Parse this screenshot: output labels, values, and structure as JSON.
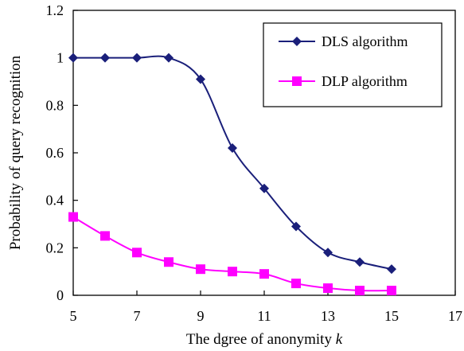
{
  "chart_data": {
    "type": "line",
    "title": "",
    "xlabel_prefix": "The dgree of anonymity ",
    "xlabel_var": "k",
    "ylabel": "Probability of query  recognition",
    "xlim": [
      5,
      17
    ],
    "ylim": [
      0,
      1.2
    ],
    "xticks": [
      "5",
      "7",
      "9",
      "11",
      "13",
      "15",
      "17"
    ],
    "yticks": [
      "0",
      "0.2",
      "0.4",
      "0.6",
      "0.8",
      "1",
      "1.2"
    ],
    "grid": false,
    "legend_position": "top-right",
    "x": [
      5,
      6,
      7,
      8,
      9,
      10,
      11,
      12,
      13,
      14,
      15
    ],
    "series": [
      {
        "name": "DLS algorithm",
        "color": "#1a1f7a",
        "marker": "diamond",
        "values": [
          1.0,
          1.0,
          1.0,
          1.0,
          0.91,
          0.62,
          0.45,
          0.29,
          0.18,
          0.14,
          0.11
        ]
      },
      {
        "name": "DLP algorithm",
        "color": "#ff00ff",
        "marker": "square",
        "values": [
          0.33,
          0.25,
          0.18,
          0.14,
          0.11,
          0.1,
          0.09,
          0.05,
          0.03,
          0.02,
          0.02
        ]
      }
    ]
  }
}
